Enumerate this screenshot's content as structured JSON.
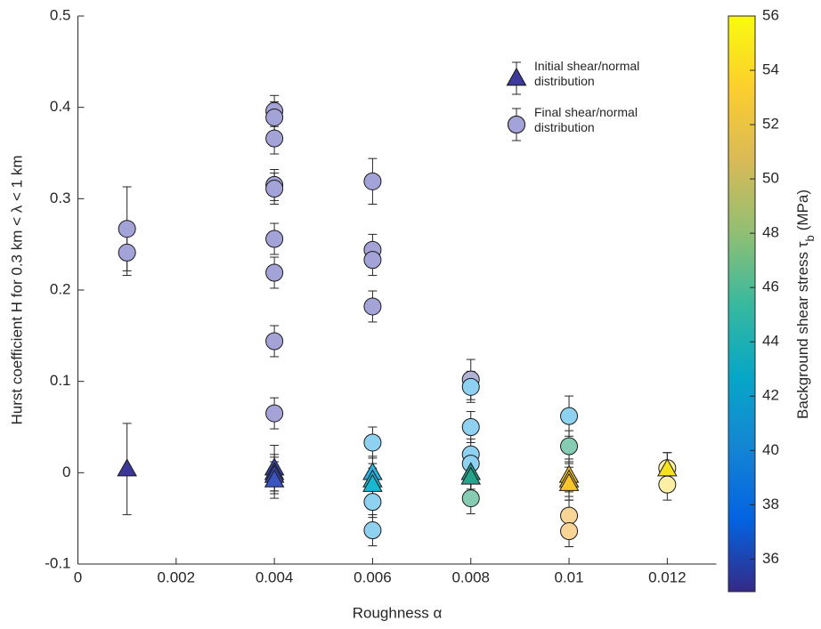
{
  "chart_data": {
    "type": "scatter",
    "xlabel": "Roughness α",
    "ylabel": "Hurst coefficient H for 0.3 km < λ < 1 km",
    "xlim": [
      0,
      0.013
    ],
    "xticks": [
      0,
      0.002,
      0.004,
      0.006,
      0.008,
      0.01,
      0.012
    ],
    "ylim": [
      -0.1,
      0.5
    ],
    "yticks": [
      -0.1,
      0,
      0.1,
      0.2,
      0.3,
      0.4,
      0.5
    ],
    "legend": "upper-right",
    "series": [
      {
        "name": "Initial shear/normal distribution",
        "marker": "triangle",
        "color": "#3d3a9b",
        "x": [
          0.001,
          0.004,
          0.004,
          0.004,
          0.004,
          0.006,
          0.006,
          0.006,
          0.008,
          0.008,
          0.01,
          0.01,
          0.01,
          0.012
        ],
        "values": [
          0.004,
          0.005,
          0.0,
          -0.003,
          -0.008,
          0.0,
          -0.008,
          -0.013,
          0.0,
          -0.005,
          -0.003,
          -0.008,
          -0.012,
          0.004
        ],
        "errors": [
          0.05,
          0.025,
          0.02,
          0.02,
          0.02,
          0.018,
          0.018,
          0.018,
          0.018,
          0.018,
          0.018,
          0.018,
          0.018,
          0.018
        ],
        "colors": [
          "#3b3799",
          "#3b46ad",
          "#3b46ad",
          "#3a4ab3",
          "#3a55bf",
          "#2bb0e0",
          "#1fb6d8",
          "#19b8cf",
          "#1d9e8a",
          "#26a38a",
          "#f2c032",
          "#f4c030",
          "#f6c62a",
          "#f6e11e"
        ]
      },
      {
        "name": "Final shear/normal distribution",
        "marker": "circle",
        "color": "#a4a3d8",
        "x": [
          0.001,
          0.001,
          0.004,
          0.004,
          0.004,
          0.004,
          0.004,
          0.004,
          0.004,
          0.004,
          0.004,
          0.006,
          0.006,
          0.006,
          0.006,
          0.006,
          0.006,
          0.006,
          0.008,
          0.008,
          0.008,
          0.008,
          0.008,
          0.008,
          0.01,
          0.01,
          0.01,
          0.01,
          0.012,
          0.012
        ],
        "values": [
          0.267,
          0.241,
          0.396,
          0.389,
          0.366,
          0.315,
          0.311,
          0.256,
          0.219,
          0.144,
          0.065,
          0.319,
          0.244,
          0.233,
          0.182,
          0.033,
          -0.032,
          -0.063,
          0.102,
          0.094,
          0.05,
          0.02,
          0.01,
          -0.028,
          0.062,
          0.029,
          -0.047,
          -0.064,
          0.005,
          -0.013
        ],
        "errors": [
          0.046,
          0.025,
          0.017,
          0.017,
          0.017,
          0.017,
          0.017,
          0.017,
          0.017,
          0.017,
          0.017,
          0.025,
          0.017,
          0.017,
          0.017,
          0.017,
          0.017,
          0.017,
          0.022,
          0.017,
          0.017,
          0.017,
          0.017,
          0.017,
          0.022,
          0.017,
          0.017,
          0.017,
          0.017,
          0.017
        ],
        "colors": [
          "#a4a3d8",
          "#a4a3d8",
          "#a4a3d8",
          "#a4a3d8",
          "#a4a3d8",
          "#a4a3d8",
          "#a4a3d8",
          "#a4a3d8",
          "#a4a3d8",
          "#a4a3d8",
          "#a4a3d8",
          "#a4a3d8",
          "#a4a3d8",
          "#a4a3d8",
          "#a4a3d8",
          "#8fd1f1",
          "#8fd1f1",
          "#8fd1f1",
          "#b0b3d6",
          "#8fd1f1",
          "#8fd1f1",
          "#8fd1f1",
          "#8fd1f1",
          "#86ccb3",
          "#8fd1f1",
          "#86ccb3",
          "#f8d596",
          "#f8d596",
          "#fbefa6",
          "#fbefa6"
        ]
      }
    ],
    "colorbar": {
      "label": "Background shear stress τ",
      "label_sub": "b",
      "label_unit": "(MPa)",
      "clim": [
        34.8,
        56
      ],
      "ticks": [
        36,
        38,
        40,
        42,
        44,
        46,
        48,
        50,
        52,
        54,
        56
      ],
      "colormap": [
        "#352a87",
        "#0363e1",
        "#1485d4",
        "#06a7c6",
        "#38b99e",
        "#92bf73",
        "#d9ba56",
        "#fcce2e",
        "#f9fb0e"
      ]
    }
  }
}
